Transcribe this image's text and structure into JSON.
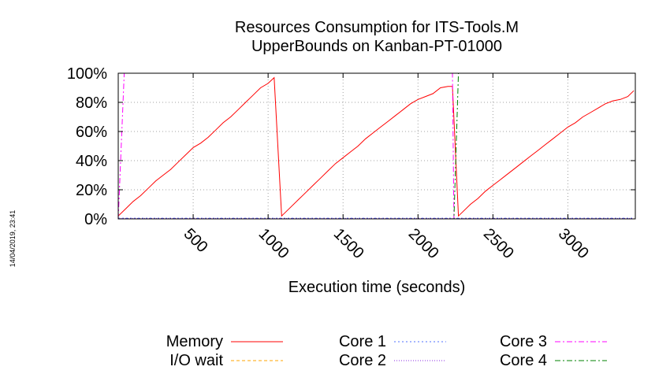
{
  "chart_data": {
    "type": "line",
    "title": [
      "Resources Consumption for ITS-Tools.M",
      "UpperBounds on Kanban-PT-01000"
    ],
    "xlabel": "Execution time (seconds)",
    "ylabel": "",
    "xlim": [
      0,
      3450
    ],
    "ylim": [
      0,
      100
    ],
    "xticks": [
      500,
      1000,
      1500,
      2000,
      2500,
      3000
    ],
    "yticks": [
      0,
      20,
      40,
      60,
      80,
      100
    ],
    "ytick_labels": [
      "0%",
      "20%",
      "40%",
      "60%",
      "80%",
      "100%"
    ],
    "grid": true,
    "legend_position": "bottom",
    "timestamp": "14/04/2019, 23:41",
    "series": [
      {
        "name": "Memory",
        "color": "#ff0000",
        "dash": "",
        "x": [
          0,
          50,
          100,
          150,
          200,
          250,
          300,
          350,
          400,
          450,
          500,
          550,
          600,
          650,
          700,
          750,
          800,
          850,
          900,
          950,
          1000,
          1040,
          1090,
          1150,
          1200,
          1250,
          1300,
          1350,
          1400,
          1450,
          1500,
          1550,
          1600,
          1650,
          1700,
          1750,
          1800,
          1850,
          1900,
          1950,
          2000,
          2050,
          2100,
          2150,
          2200,
          2230,
          2270,
          2300,
          2350,
          2400,
          2450,
          2500,
          2550,
          2600,
          2650,
          2700,
          2750,
          2800,
          2850,
          2900,
          2950,
          3000,
          3050,
          3100,
          3150,
          3200,
          3250,
          3300,
          3350,
          3400,
          3440
        ],
        "y": [
          2,
          7,
          12,
          16,
          21,
          26,
          30,
          34,
          39,
          44,
          49,
          52,
          56,
          61,
          66,
          70,
          75,
          80,
          85,
          90,
          93,
          97,
          2,
          8,
          13,
          18,
          23,
          28,
          33,
          38,
          42,
          46,
          50,
          55,
          59,
          63,
          67,
          71,
          75,
          79,
          82,
          84,
          86,
          90,
          91,
          91,
          2,
          5,
          10,
          14,
          19,
          23,
          27,
          31,
          35,
          39,
          43,
          47,
          51,
          55,
          59,
          63,
          66,
          70,
          73,
          76,
          79,
          81,
          82,
          84,
          88
        ]
      },
      {
        "name": "I/O wait",
        "color": "#ffa500",
        "dash": "4 3",
        "x": [
          0,
          3440
        ],
        "y": [
          0,
          0
        ]
      },
      {
        "name": "Core 1",
        "color": "#4f6fff",
        "dash": "2 3",
        "x": [
          0,
          3440
        ],
        "y": [
          0.5,
          0.5
        ]
      },
      {
        "name": "Core 2",
        "color": "#8a2be2",
        "dash": "1 2",
        "x": [
          0,
          3440
        ],
        "y": [
          0.3,
          0.3
        ]
      },
      {
        "name": "Core 3",
        "color": "#ff00ff",
        "dash": "7 3 2 3",
        "x": [
          0,
          40,
          2230,
          2240,
          3440
        ],
        "y": [
          0,
          100,
          100,
          0,
          0
        ]
      },
      {
        "name": "Core 4",
        "color": "#008000",
        "dash": "7 3 2 3",
        "x": [
          0,
          2210,
          2240,
          2270,
          3440
        ],
        "y": [
          0,
          0,
          0,
          100,
          100
        ]
      }
    ]
  }
}
